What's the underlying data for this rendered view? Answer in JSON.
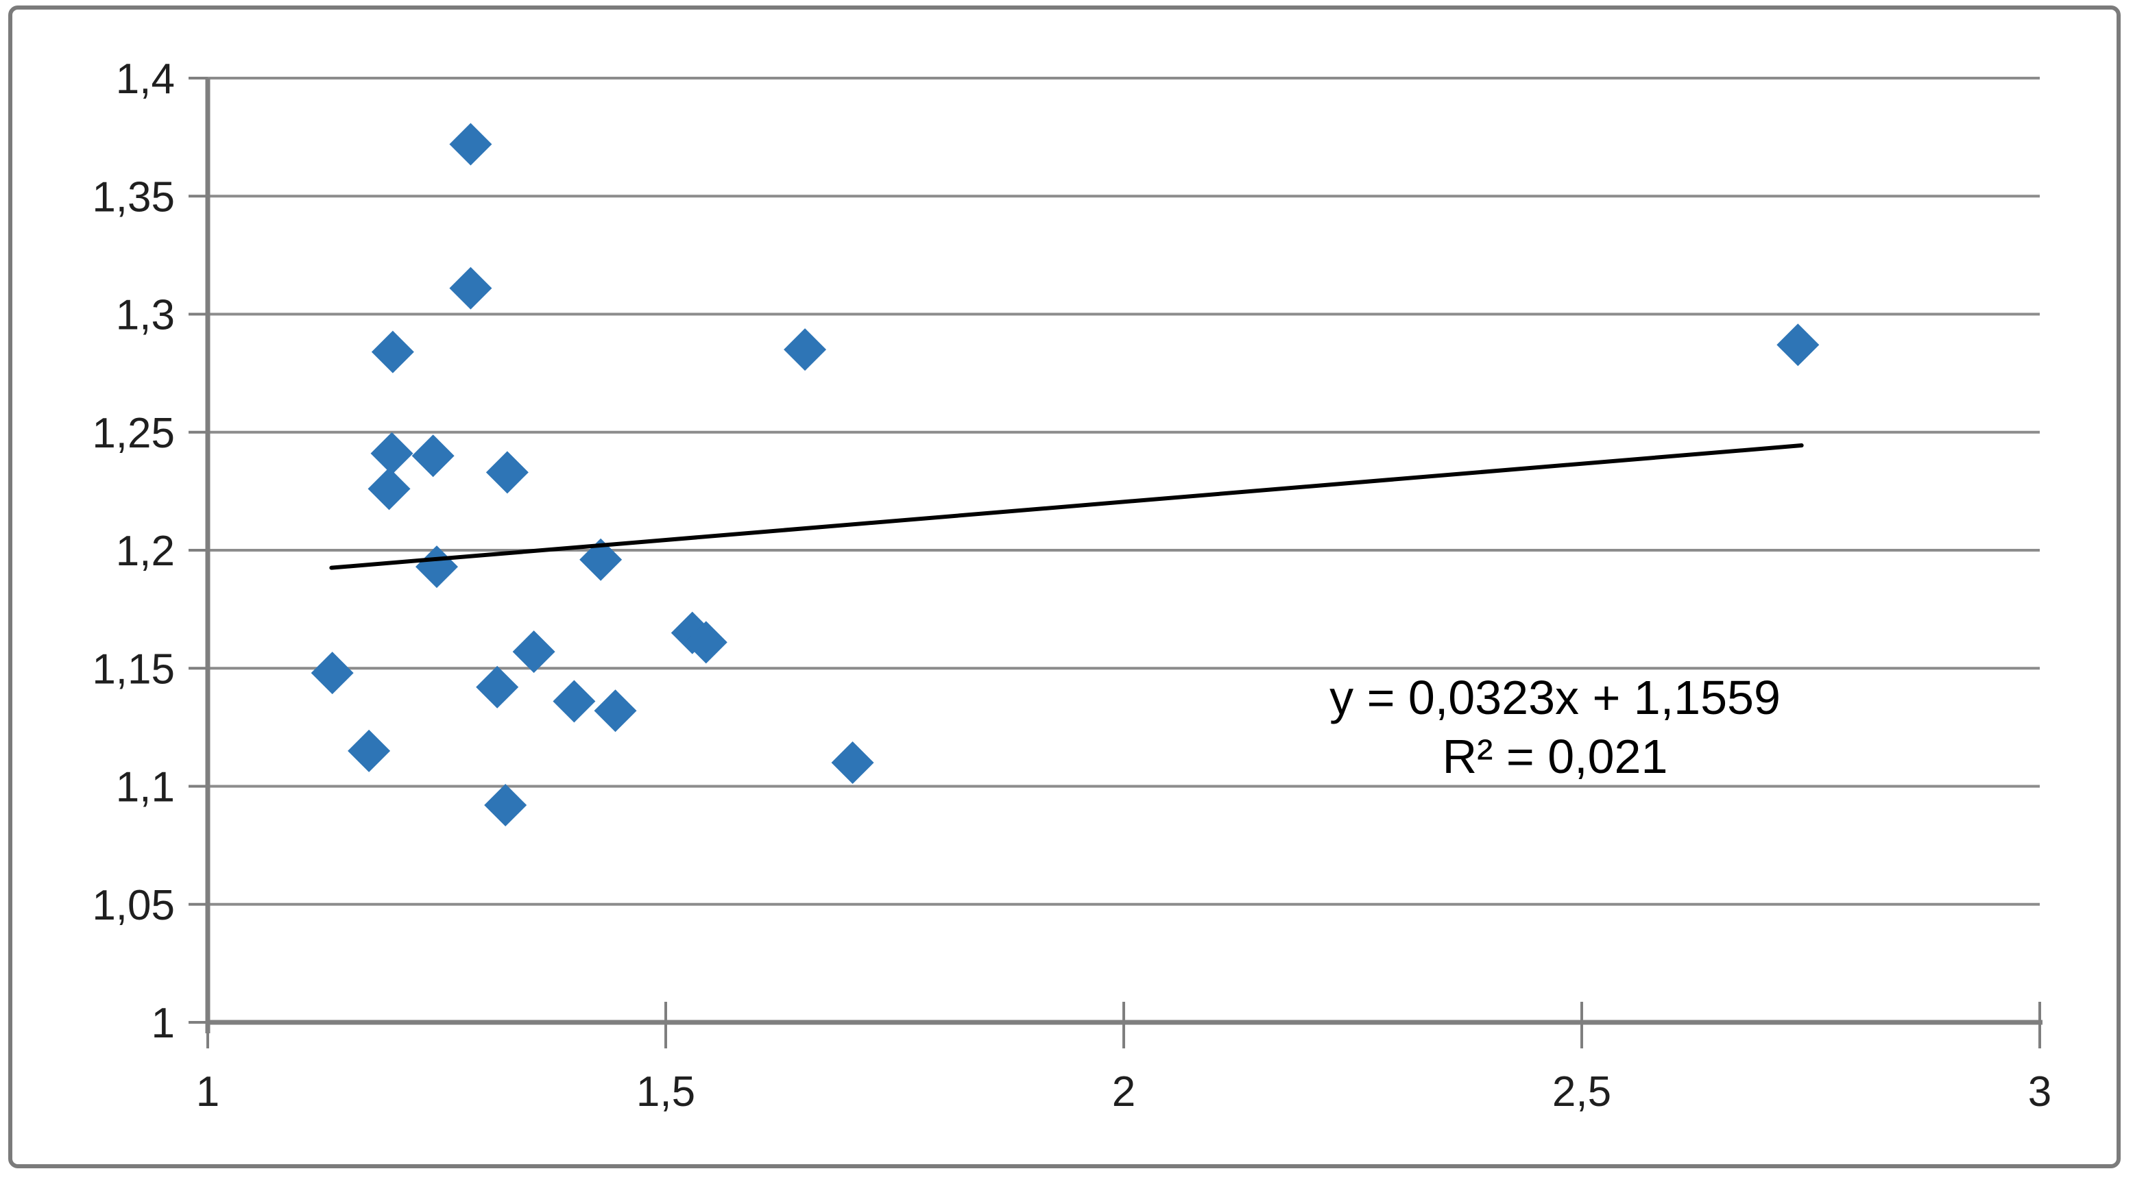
{
  "chart_data": {
    "type": "scatter",
    "title": "",
    "grid": "horizontal",
    "legend": null,
    "points": [
      {
        "x": 1.287,
        "y": 1.372
      },
      {
        "x": 1.287,
        "y": 1.311
      },
      {
        "x": 1.202,
        "y": 1.284
      },
      {
        "x": 1.652,
        "y": 1.285
      },
      {
        "x": 2.736,
        "y": 1.287
      },
      {
        "x": 1.201,
        "y": 1.241
      },
      {
        "x": 1.246,
        "y": 1.24
      },
      {
        "x": 1.327,
        "y": 1.233
      },
      {
        "x": 1.198,
        "y": 1.226
      },
      {
        "x": 1.25,
        "y": 1.193
      },
      {
        "x": 1.429,
        "y": 1.196
      },
      {
        "x": 1.529,
        "y": 1.165
      },
      {
        "x": 1.544,
        "y": 1.161
      },
      {
        "x": 1.356,
        "y": 1.157
      },
      {
        "x": 1.136,
        "y": 1.148
      },
      {
        "x": 1.316,
        "y": 1.142
      },
      {
        "x": 1.4,
        "y": 1.136
      },
      {
        "x": 1.445,
        "y": 1.132
      },
      {
        "x": 1.176,
        "y": 1.115
      },
      {
        "x": 1.704,
        "y": 1.11
      },
      {
        "x": 1.325,
        "y": 1.092
      }
    ],
    "trendline": {
      "slope": 0.0323,
      "intercept": 1.1559,
      "x_start": 1.135,
      "x_end": 2.74,
      "equation_label": "y = 0,0323x + 1,1559",
      "r2_label": "R² = 0,021"
    },
    "x_axis": {
      "min": 1,
      "max": 3,
      "tick_values": [
        1,
        1.5,
        2,
        2.5,
        3
      ],
      "tick_labels": [
        "1",
        "1,5",
        "2",
        "2,5",
        "3"
      ]
    },
    "y_axis": {
      "min": 1,
      "max": 1.4,
      "tick_values": [
        1,
        1.05,
        1.1,
        1.15,
        1.2,
        1.25,
        1.3,
        1.35,
        1.4
      ],
      "tick_labels": [
        "1",
        "1,05",
        "1,1",
        "1,15",
        "1,2",
        "1,25",
        "1,3",
        "1,35",
        "1,4"
      ]
    },
    "colors": {
      "marker": "#2E75B6",
      "gridline": "#8C8C8C",
      "axis": "#7F7F7F",
      "trendline": "#000000",
      "text": "#1F1F1F",
      "border": "#7B7B7B",
      "background": "#FFFFFF"
    },
    "marker": {
      "shape": "diamond",
      "half_size": 31
    }
  }
}
